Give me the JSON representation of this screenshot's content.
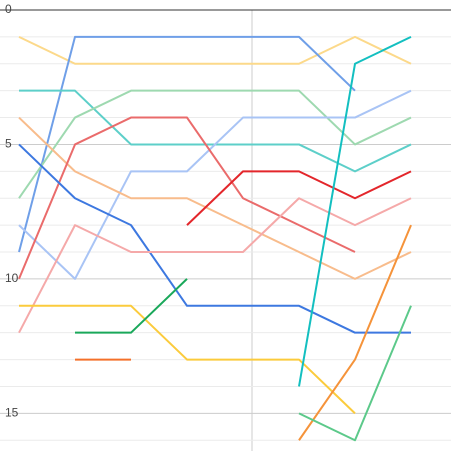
{
  "chart_data": {
    "type": "line",
    "reverse_y": true,
    "categories": [
      null,
      null,
      null,
      null,
      null,
      null,
      null,
      null
    ],
    "ylim": [
      0,
      16.4
    ],
    "yticks": [
      0,
      5,
      10,
      15
    ],
    "minor_yticks": [
      1,
      2,
      3,
      4,
      6,
      7,
      8,
      9,
      11,
      12,
      13,
      14,
      16
    ],
    "grid": true,
    "series": [
      {
        "color": "#fcd98a",
        "values": [
          1,
          2,
          2,
          2,
          2,
          2,
          1,
          2
        ]
      },
      {
        "color": "#6f9fe8",
        "values": [
          9,
          1,
          1,
          1,
          1,
          1,
          3,
          null
        ]
      },
      {
        "color": "#5dcfc9",
        "values": [
          3,
          3,
          5,
          5,
          5,
          5,
          6,
          5
        ]
      },
      {
        "color": "#9ed9b0",
        "values": [
          7,
          4,
          3,
          3,
          3,
          3,
          5,
          4
        ]
      },
      {
        "color": "#a9c4f5",
        "values": [
          8,
          10,
          6,
          6,
          4,
          4,
          4,
          3
        ]
      },
      {
        "color": "#f8bc8c",
        "values": [
          4,
          6,
          7,
          7,
          8,
          9,
          10,
          9
        ]
      },
      {
        "color": "#ea6b6b",
        "values": [
          10,
          5,
          4,
          4,
          7,
          8,
          9,
          null
        ]
      },
      {
        "color": "#3d78e0",
        "values": [
          5,
          7,
          8,
          11,
          11,
          11,
          12,
          12
        ]
      },
      {
        "color": "#f5a9a9",
        "values": [
          12,
          8,
          9,
          9,
          9,
          7,
          8,
          7
        ]
      },
      {
        "color": "#fbcb3c",
        "values": [
          11,
          11,
          11,
          13,
          13,
          13,
          15,
          null
        ]
      },
      {
        "color": "#1aa85a",
        "values": [
          null,
          12,
          12,
          10,
          null,
          null,
          null,
          null
        ]
      },
      {
        "color": "#f4702a",
        "values": [
          null,
          13,
          13,
          null,
          null,
          null,
          null,
          null
        ]
      },
      {
        "color": "#e3262b",
        "values": [
          null,
          null,
          null,
          8,
          6,
          6,
          7,
          6
        ]
      },
      {
        "color": "#13bfc0",
        "values": [
          null,
          null,
          null,
          null,
          null,
          14,
          2,
          1
        ]
      },
      {
        "color": "#f5933a",
        "values": [
          null,
          null,
          null,
          null,
          null,
          16,
          13,
          8
        ]
      },
      {
        "color": "#5cc98a",
        "values": [
          null,
          null,
          null,
          null,
          null,
          15,
          16,
          11
        ]
      }
    ]
  }
}
